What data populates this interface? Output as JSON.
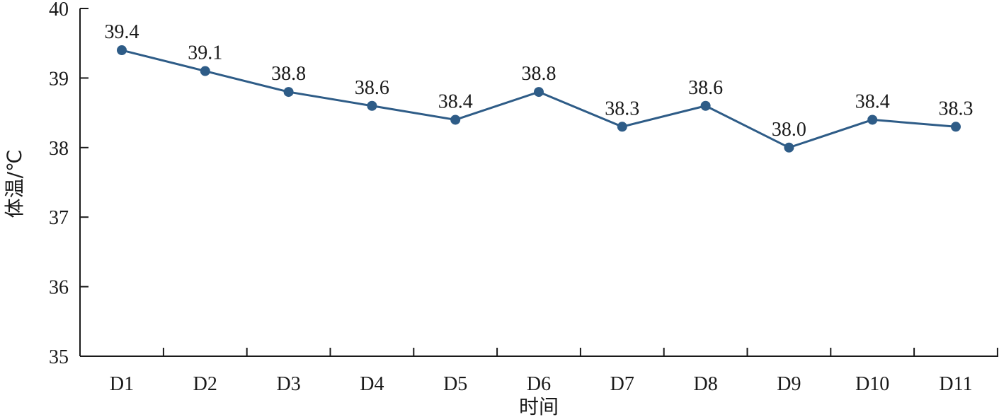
{
  "chart_data": {
    "type": "line",
    "title": "",
    "xlabel": "时间",
    "ylabel": "体温/℃",
    "categories": [
      "D1",
      "D2",
      "D3",
      "D4",
      "D5",
      "D6",
      "D7",
      "D8",
      "D9",
      "D10",
      "D11"
    ],
    "series": [
      {
        "values": [
          39.4,
          39.1,
          38.8,
          38.6,
          38.4,
          38.8,
          38.3,
          38.6,
          38.0,
          38.4,
          38.3
        ]
      }
    ],
    "data_labels": [
      "39.4",
      "39.1",
      "38.8",
      "38.6",
      "38.4",
      "38.8",
      "38.3",
      "38.6",
      "38.0",
      "38.4",
      "38.3"
    ],
    "ylim": [
      35,
      40
    ],
    "yticks": [
      35,
      36,
      37,
      38,
      39,
      40
    ],
    "grid": false,
    "legend": "none",
    "line_color": "#2e5c87"
  }
}
